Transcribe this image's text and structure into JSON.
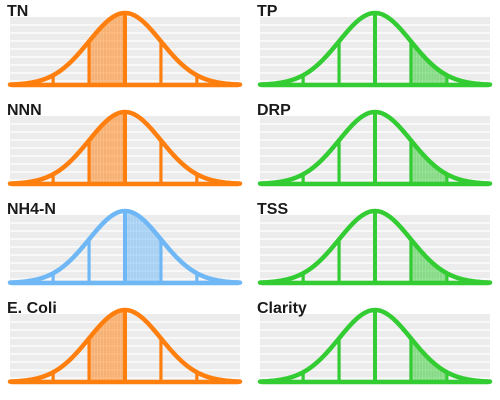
{
  "colors": {
    "orange": "#ff7f0e",
    "green": "#33cc33",
    "blue": "#6fb8f5",
    "grid_fill": "#ececec",
    "grid_line": "#ffffff"
  },
  "chart_data": [
    {
      "type": "area",
      "title": "TN",
      "color": "orange",
      "shaded_band": "left-center"
    },
    {
      "type": "area",
      "title": "TP",
      "color": "green",
      "shaded_band": "right-tail"
    },
    {
      "type": "area",
      "title": "NNN",
      "color": "orange",
      "shaded_band": "left-center"
    },
    {
      "type": "area",
      "title": "DRP",
      "color": "green",
      "shaded_band": "right-tail"
    },
    {
      "type": "area",
      "title": "NH4-N",
      "color": "blue",
      "shaded_band": "center"
    },
    {
      "type": "area",
      "title": "TSS",
      "color": "green",
      "shaded_band": "right-tail"
    },
    {
      "type": "area",
      "title": "E. Coli",
      "color": "orange",
      "shaded_band": "left-center"
    },
    {
      "type": "area",
      "title": "Clarity",
      "color": "green",
      "shaded_band": "right-tail"
    }
  ]
}
